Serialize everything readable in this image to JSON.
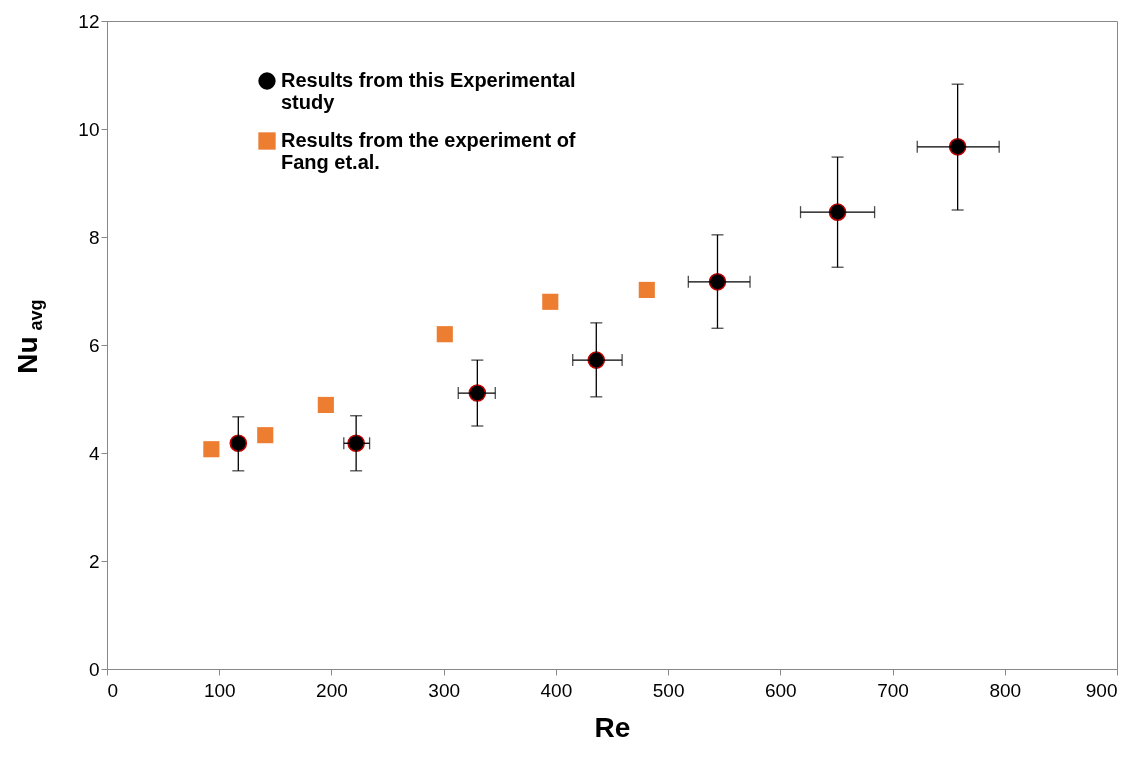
{
  "chart_data": {
    "type": "scatter",
    "xlabel": "Re",
    "ylabel": "Nu$_{avg}$",
    "xlim": [
      0,
      900
    ],
    "xticks": [
      0,
      100,
      200,
      300,
      400,
      500,
      600,
      700,
      800,
      900
    ],
    "ylim": [
      0,
      12
    ],
    "yticks": [
      0,
      2,
      4,
      6,
      8,
      10,
      12
    ],
    "grid": false,
    "legend": "top left",
    "series": [
      {
        "name": "Results from this Experimental study",
        "color": "#000000",
        "marker": "circle",
        "x": [
          117,
          222,
          330,
          436,
          544,
          651,
          758
        ],
        "values": [
          4.18,
          4.18,
          5.11,
          5.72,
          7.17,
          8.46,
          9.67
        ],
        "errors": [
          [
            3.67,
            4.67
          ],
          [
            3.67,
            4.69
          ],
          [
            4.5,
            5.72
          ],
          [
            5.04,
            6.41
          ],
          [
            6.31,
            8.04
          ],
          [
            7.44,
            9.48
          ],
          [
            8.5,
            10.83
          ]
        ],
        "xerrors": [
          null,
          [
            211,
            234
          ],
          [
            313,
            346
          ],
          [
            415,
            459
          ],
          [
            518,
            573
          ],
          [
            618,
            684
          ],
          [
            722,
            795
          ]
        ]
      },
      {
        "name": "Results from the experiment of Fang et.al.",
        "color": "#ed7d31",
        "marker": "square",
        "x": [
          93,
          141,
          195,
          301,
          395,
          481
        ],
        "values": [
          4.07,
          4.33,
          4.89,
          6.2,
          6.8,
          7.02
        ]
      }
    ]
  }
}
